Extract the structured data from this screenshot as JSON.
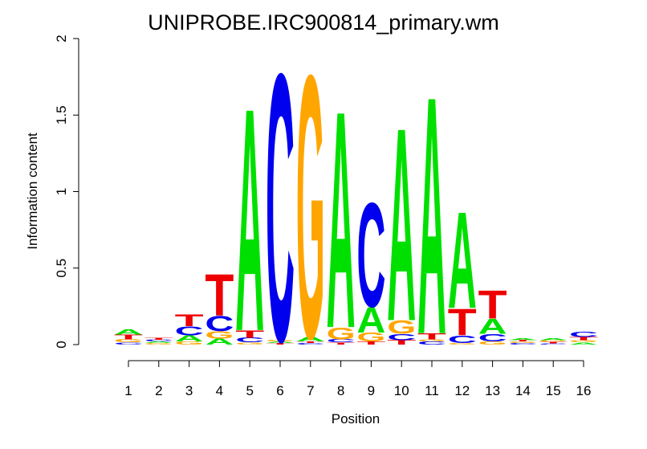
{
  "chart_data": {
    "type": "sequence-logo",
    "title": "UNIPROBE.IRC900814_primary.wm",
    "xlabel": "Position",
    "ylabel": "Information content",
    "ylim": [
      0,
      2
    ],
    "y_ticks": [
      "0",
      "0.5",
      "1",
      "1.5",
      "2"
    ],
    "x_ticks": [
      "1",
      "2",
      "3",
      "4",
      "5",
      "6",
      "7",
      "8",
      "9",
      "10",
      "11",
      "12",
      "13",
      "14",
      "15",
      "16"
    ],
    "colors": {
      "A": "#00e000",
      "C": "#0000ee",
      "G": "#ffa500",
      "T": "#ee0000"
    },
    "positions": [
      {
        "pos": 1,
        "letters": [
          [
            "C",
            0.015
          ],
          [
            "G",
            0.02
          ],
          [
            "T",
            0.03
          ],
          [
            "A",
            0.035
          ]
        ]
      },
      {
        "pos": 2,
        "letters": [
          [
            "G",
            0.01
          ],
          [
            "A",
            0.01
          ],
          [
            "C",
            0.012
          ],
          [
            "T",
            0.012
          ]
        ]
      },
      {
        "pos": 3,
        "letters": [
          [
            "G",
            0.02
          ],
          [
            "A",
            0.04
          ],
          [
            "C",
            0.06
          ],
          [
            "T",
            0.08
          ]
        ]
      },
      {
        "pos": 4,
        "letters": [
          [
            "A",
            0.04
          ],
          [
            "G",
            0.05
          ],
          [
            "C",
            0.1
          ],
          [
            "T",
            0.28
          ]
        ]
      },
      {
        "pos": 5,
        "letters": [
          [
            "G",
            0.015
          ],
          [
            "C",
            0.03
          ],
          [
            "T",
            0.05
          ],
          [
            "A",
            1.5
          ]
        ]
      },
      {
        "pos": 6,
        "letters": [
          [
            "T",
            0.01
          ],
          [
            "A",
            0.01
          ],
          [
            "G",
            0.01
          ],
          [
            "C",
            1.8
          ]
        ]
      },
      {
        "pos": 7,
        "letters": [
          [
            "C",
            0.01
          ],
          [
            "T",
            0.01
          ],
          [
            "A",
            0.03
          ],
          [
            "G",
            1.77
          ]
        ]
      },
      {
        "pos": 8,
        "letters": [
          [
            "T",
            0.015
          ],
          [
            "C",
            0.02
          ],
          [
            "G",
            0.08
          ],
          [
            "A",
            1.46
          ]
        ]
      },
      {
        "pos": 9,
        "letters": [
          [
            "T",
            0.02
          ],
          [
            "G",
            0.06
          ],
          [
            "A",
            0.17
          ],
          [
            "C",
            0.7
          ]
        ]
      },
      {
        "pos": 10,
        "letters": [
          [
            "T",
            0.03
          ],
          [
            "C",
            0.04
          ],
          [
            "G",
            0.09
          ],
          [
            "A",
            1.3
          ]
        ]
      },
      {
        "pos": 11,
        "letters": [
          [
            "C",
            0.02
          ],
          [
            "G",
            0.015
          ],
          [
            "T",
            0.04
          ],
          [
            "A",
            1.6
          ]
        ]
      },
      {
        "pos": 12,
        "letters": [
          [
            "G",
            0.01
          ],
          [
            "C",
            0.05
          ],
          [
            "T",
            0.18
          ],
          [
            "A",
            0.65
          ]
        ]
      },
      {
        "pos": 13,
        "letters": [
          [
            "G",
            0.02
          ],
          [
            "C",
            0.05
          ],
          [
            "A",
            0.1
          ],
          [
            "T",
            0.19
          ]
        ]
      },
      {
        "pos": 14,
        "letters": [
          [
            "C",
            0.01
          ],
          [
            "G",
            0.01
          ],
          [
            "T",
            0.01
          ],
          [
            "A",
            0.015
          ]
        ]
      },
      {
        "pos": 15,
        "letters": [
          [
            "C",
            0.008
          ],
          [
            "T",
            0.01
          ],
          [
            "G",
            0.01
          ],
          [
            "A",
            0.012
          ]
        ]
      },
      {
        "pos": 16,
        "letters": [
          [
            "A",
            0.015
          ],
          [
            "G",
            0.015
          ],
          [
            "T",
            0.02
          ],
          [
            "C",
            0.035
          ]
        ]
      }
    ]
  }
}
